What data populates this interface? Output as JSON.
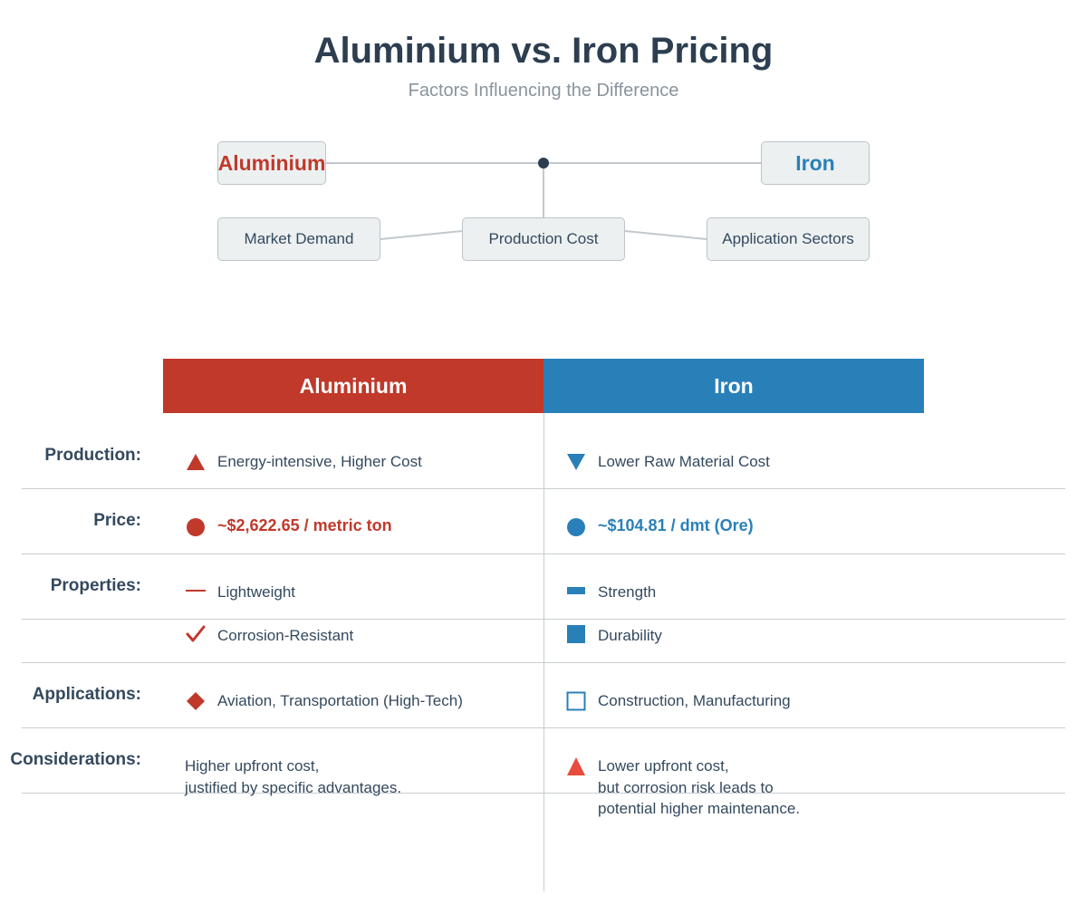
{
  "header": {
    "title": "Aluminium vs. Iron Pricing",
    "subtitle": "Factors Influencing the Difference"
  },
  "diagram": {
    "nodes": {
      "aluminium": "Aluminium",
      "iron": "Iron",
      "market_demand": "Market Demand",
      "production_cost": "Production Cost",
      "application_sectors": "Application Sectors"
    }
  },
  "table": {
    "columns": {
      "aluminium": "Aluminium",
      "iron": "Iron"
    },
    "row_labels": {
      "production": "Production:",
      "price": "Price:",
      "properties": "Properties:",
      "applications": "Applications:",
      "considerations": "Considerations:"
    },
    "aluminium": {
      "production": "Energy-intensive, Higher Cost",
      "price": "~$2,622.65 / metric ton",
      "property_1": "Lightweight",
      "property_2": "Corrosion-Resistant",
      "applications": "Aviation, Transportation (High-Tech)",
      "considerations_line_1": "Higher upfront cost,",
      "considerations_line_2": "justified by specific advantages."
    },
    "iron": {
      "production": "Lower Raw Material Cost",
      "price": "~$104.81 / dmt (Ore)",
      "property_1": "Strength",
      "property_2": "Durability",
      "applications": "Construction, Manufacturing",
      "considerations_line_1": "Lower upfront cost,",
      "considerations_line_2": "but corrosion risk leads to",
      "considerations_line_3": "potential higher maintenance."
    }
  },
  "icons": {
    "al_production": "triangle-up-icon",
    "fe_production": "triangle-down-icon",
    "al_price": "circle-icon",
    "fe_price": "circle-icon",
    "al_property_1": "dash-icon",
    "fe_property_1": "bar-icon",
    "al_property_2": "checkmark-icon",
    "fe_property_2": "square-icon",
    "al_applications": "diamond-icon",
    "fe_applications": "square-outline-icon",
    "fe_considerations": "warning-triangle-icon"
  },
  "colors": {
    "aluminium": "#c0392b",
    "iron": "#2980b9",
    "warning": "#e74c3c",
    "text": "#2c3e50",
    "node_fill": "#ecf0f1",
    "node_border": "#bdc3c7"
  }
}
